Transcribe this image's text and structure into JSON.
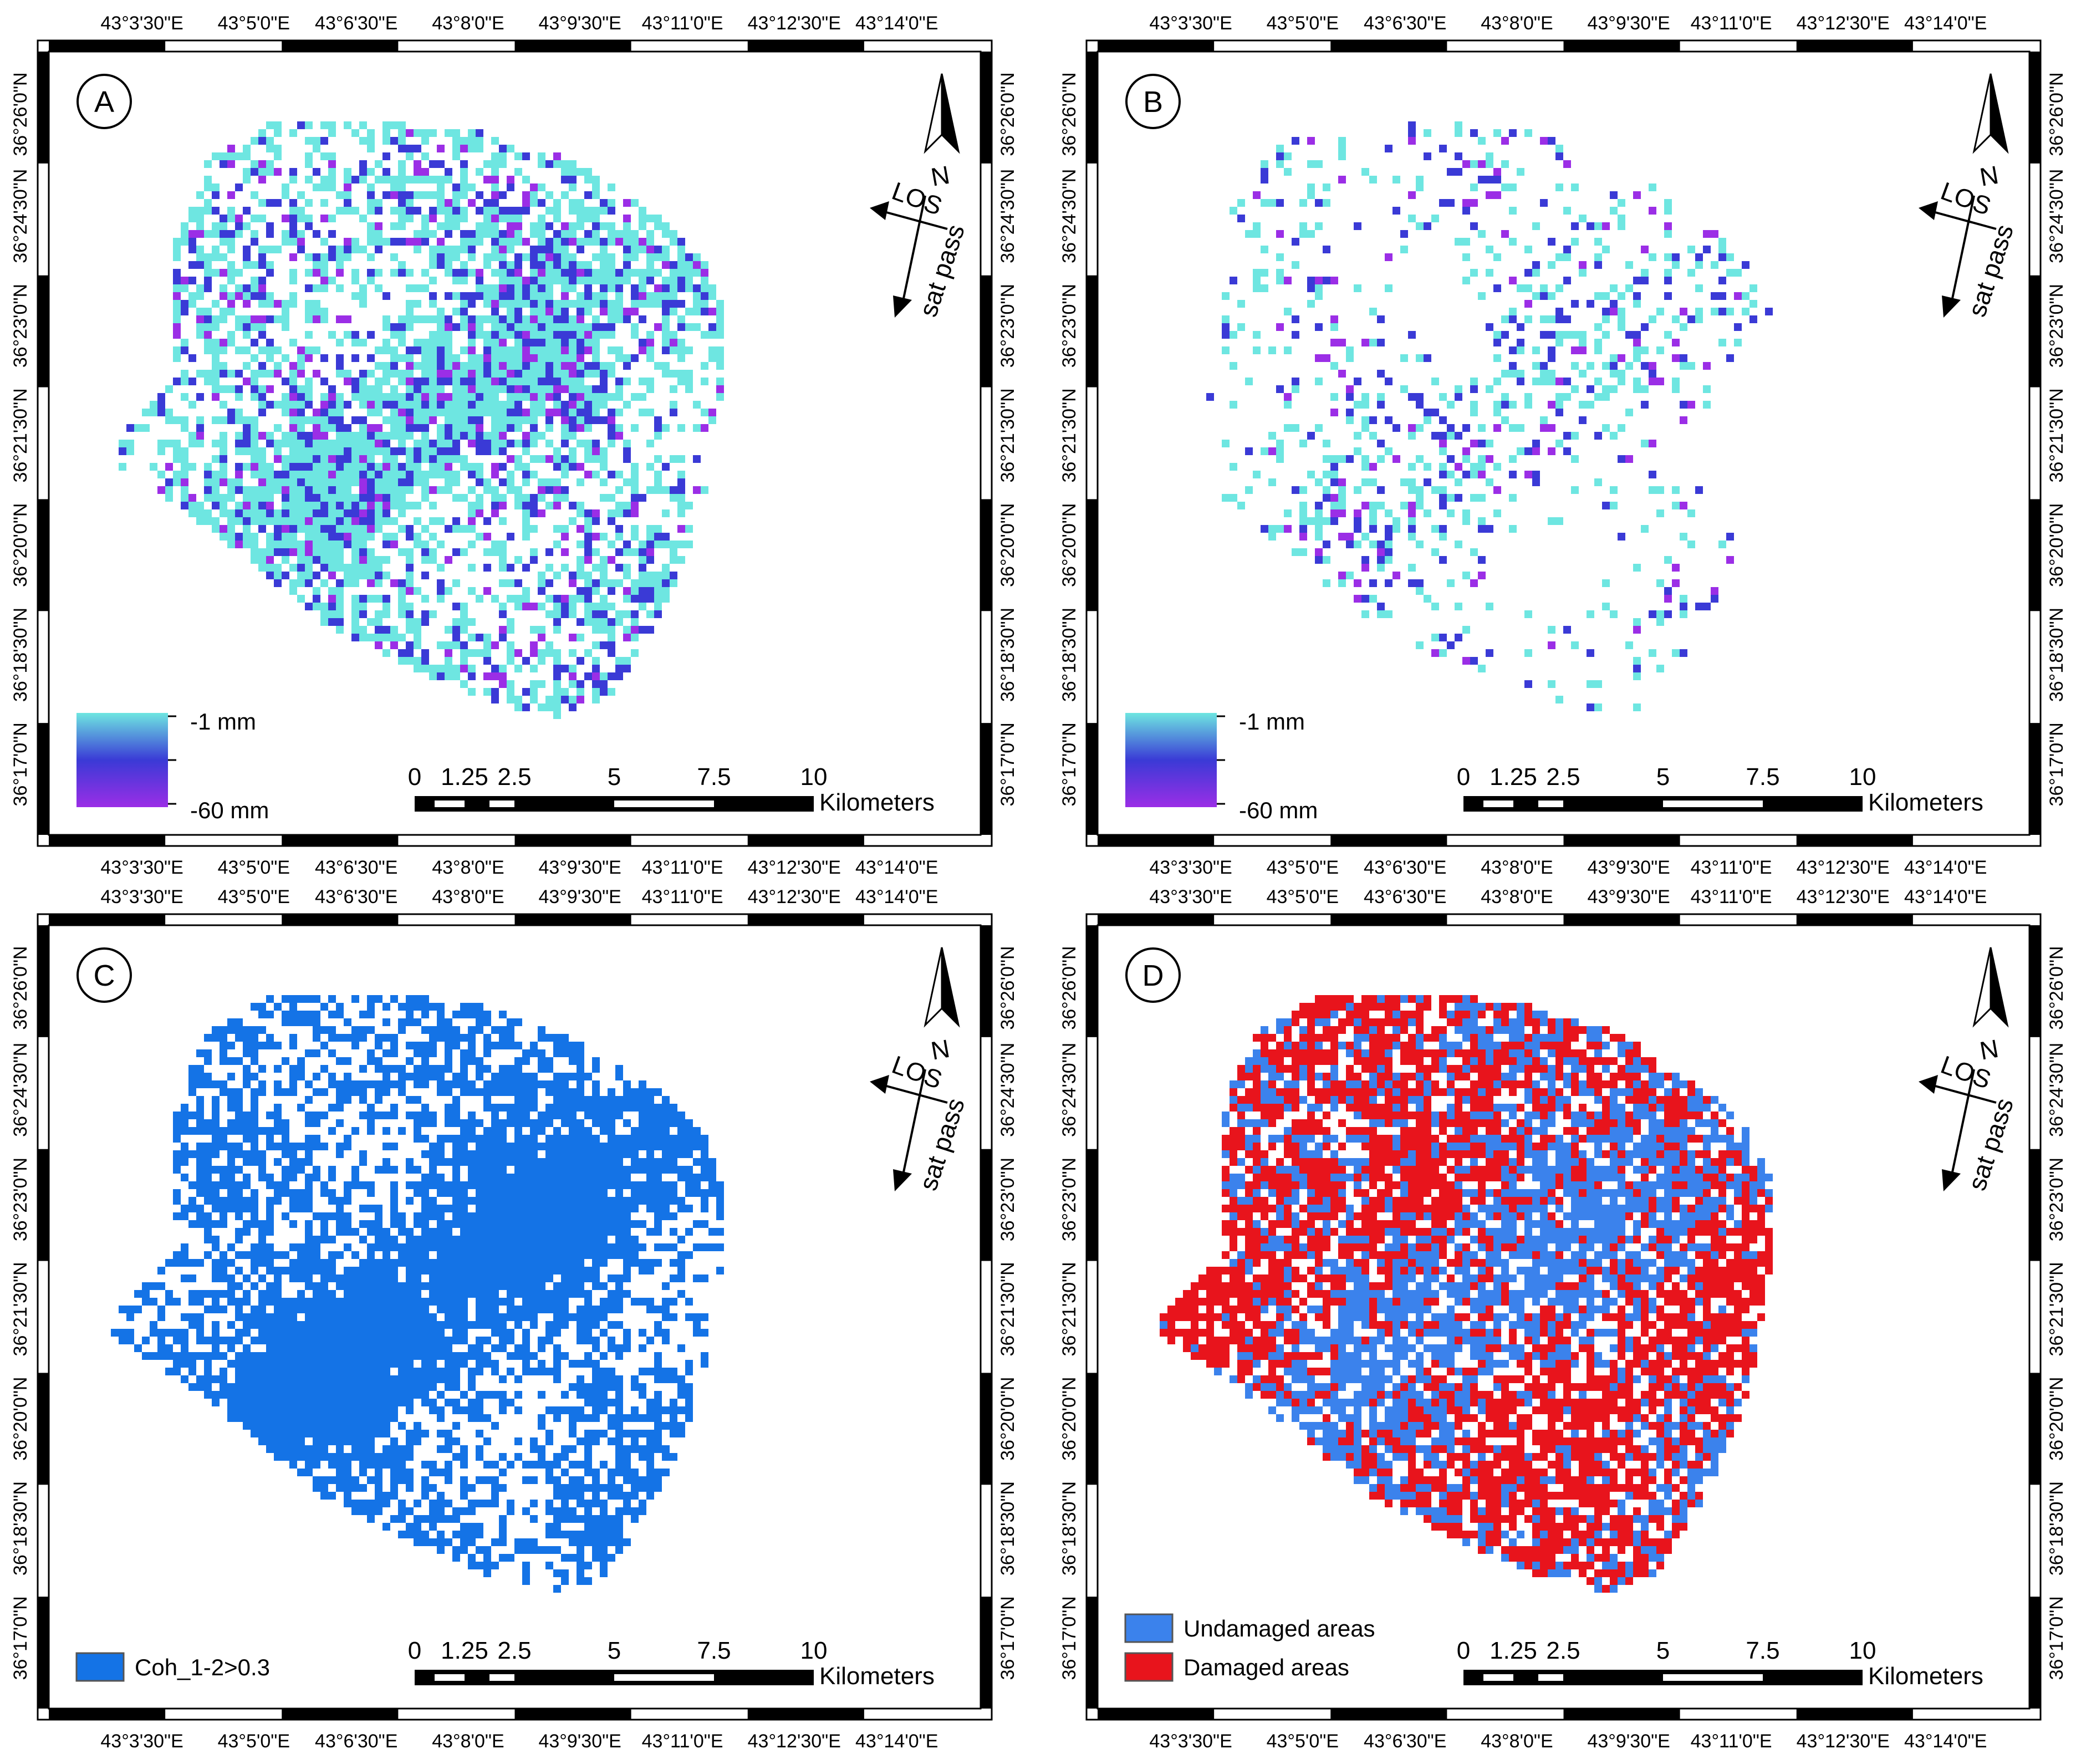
{
  "panels": [
    {
      "id": "A",
      "legend_type": "gradient",
      "legend": {
        "top": "-1 mm",
        "bottom": "-60 mm",
        "colors": [
          "#6ee6e1",
          "#3a3ad6",
          "#9b2ee6"
        ]
      },
      "texture": {
        "mode": "deformation",
        "seed": 11
      }
    },
    {
      "id": "B",
      "legend_type": "gradient",
      "legend": {
        "top": "-1 mm",
        "bottom": "-60 mm",
        "colors": [
          "#6ee6e1",
          "#3a3ad6",
          "#9b2ee6"
        ]
      },
      "texture": {
        "mode": "sparse",
        "seed": 23
      }
    },
    {
      "id": "C",
      "legend_type": "classes",
      "legend": {
        "items": [
          {
            "label": "Coh_1-2>0.3",
            "color": "#1473e6"
          }
        ]
      },
      "texture": {
        "mode": "coherence",
        "seed": 37
      }
    },
    {
      "id": "D",
      "legend_type": "classes",
      "legend": {
        "items": [
          {
            "label": "Undamaged areas",
            "color": "#3b82ec"
          },
          {
            "label": "Damaged areas",
            "color": "#e8141c"
          }
        ]
      },
      "texture": {
        "mode": "damage",
        "seed": 53
      }
    }
  ],
  "graticule": {
    "x_labels": [
      "43°3'30\"E",
      "43°5'0\"E",
      "43°6'30\"E",
      "43°8'0\"E",
      "43°9'30\"E",
      "43°11'0\"E",
      "43°12'30\"E",
      "43°14'0\"E"
    ],
    "y_labels": [
      "36°26'0\"N",
      "36°24'30\"N",
      "36°23'0\"N",
      "36°21'30\"N",
      "36°20'0\"N",
      "36°18'30\"N",
      "36°17'0\"N"
    ]
  },
  "scale_bar": {
    "ticks": [
      "0",
      "1.25",
      "2.5",
      "5",
      "7.5",
      "10"
    ],
    "unit": "Kilometers"
  },
  "north_arrow": {
    "north": "N",
    "los": "LOS",
    "pass": "sat pass"
  },
  "colors": {
    "cyan": "#6ee6e1",
    "blue": "#3a3ad6",
    "violet": "#9b2ee6",
    "coherence_blue": "#1473e6",
    "undamaged": "#3b82ec",
    "damaged": "#e8141c"
  }
}
